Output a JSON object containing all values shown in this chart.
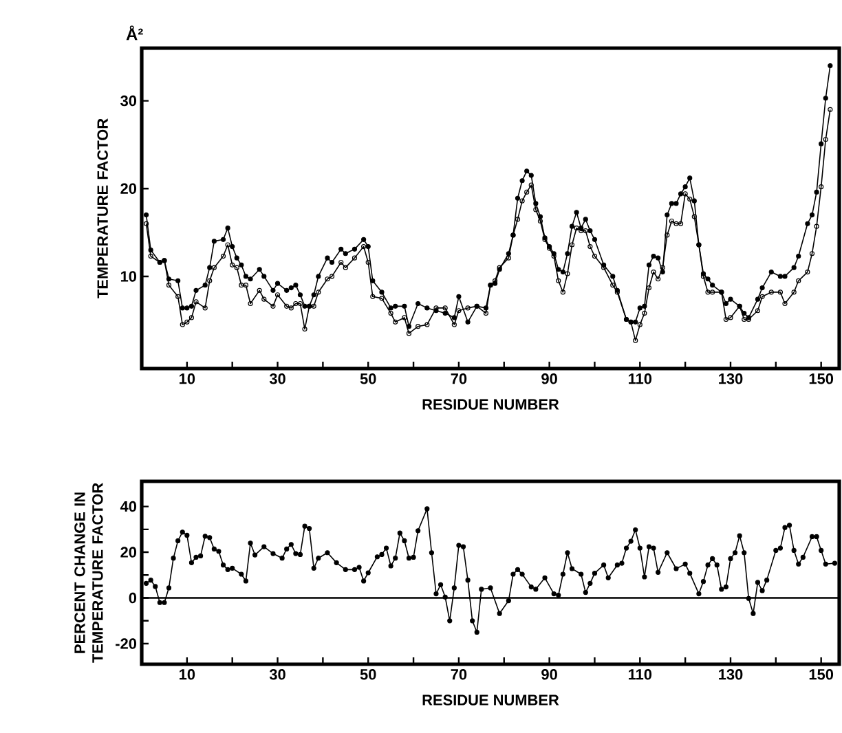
{
  "chart_data": [
    {
      "type": "line",
      "xlabel": "RESIDUE NUMBER",
      "ylabel": "TEMPERATURE FACTOR",
      "annotations": [
        "Å²"
      ],
      "marker": "circle",
      "line_style": "solid",
      "xlim": [
        0,
        154
      ],
      "ylim": [
        -0.5,
        36
      ],
      "xticks": [
        10,
        {
          "value": 20,
          "label": null
        },
        30,
        {
          "value": 40,
          "label": null
        },
        50,
        {
          "value": 60,
          "label": null
        },
        70,
        {
          "value": 80,
          "label": null
        },
        90,
        {
          "value": 100,
          "label": null
        },
        110,
        {
          "value": 120,
          "label": null
        },
        130,
        {
          "value": 140,
          "label": null
        },
        150
      ],
      "yticks": [
        10,
        20,
        30
      ],
      "x": [
        1,
        2,
        4,
        5,
        6,
        8,
        9,
        10,
        11,
        12,
        14,
        15,
        16,
        18,
        19,
        20,
        21,
        22,
        23,
        24,
        26,
        27,
        29,
        30,
        32,
        33,
        34,
        35,
        36,
        37,
        38,
        39,
        41,
        42,
        44,
        45,
        47,
        49,
        50,
        51,
        53,
        55,
        56,
        58,
        59,
        61,
        63,
        65,
        67,
        69,
        70,
        72,
        74,
        76,
        77,
        78,
        79,
        81,
        82,
        83,
        84,
        85,
        86,
        87,
        88,
        89,
        90,
        91,
        92,
        93,
        94,
        95,
        96,
        97,
        98,
        99,
        100,
        102,
        104,
        105,
        107,
        108,
        109,
        110,
        111,
        112,
        113,
        114,
        115,
        116,
        117,
        118,
        119,
        120,
        121,
        122,
        123,
        124,
        125,
        126,
        128,
        129,
        130,
        132,
        133,
        134,
        136,
        137,
        139,
        141,
        142,
        144,
        145,
        147,
        148,
        149,
        150,
        151,
        152
      ],
      "series": [
        {
          "color": "#000000",
          "values": [
            17,
            13,
            11.6,
            11.8,
            9.7,
            9.5,
            6.4,
            6.4,
            6.6,
            8.4,
            9,
            11,
            14,
            14.2,
            15.5,
            13.4,
            12.1,
            11.3,
            10,
            9.7,
            10.8,
            10,
            8.4,
            9.2,
            8.4,
            8.7,
            9,
            7.9,
            6.6,
            6.6,
            7.9,
            10,
            12.1,
            11.6,
            13.1,
            12.6,
            13.1,
            14.2,
            13.4,
            9.5,
            8.2,
            6.4,
            6.6,
            6.6,
            4.3,
            6.9,
            6.4,
            6.1,
            5.8,
            5.3,
            7.7,
            4.8,
            6.6,
            6.4,
            9,
            9.2,
            10.8,
            12.6,
            14.7,
            18.9,
            20.9,
            22,
            21.5,
            18.3,
            16.8,
            14.4,
            13.4,
            12.6,
            10.8,
            10.5,
            12.6,
            15.7,
            17.3,
            15.5,
            16.5,
            15.2,
            14.2,
            11.3,
            10,
            8.4,
            5.1,
            4.8,
            4.8,
            6.4,
            6.6,
            11.3,
            12.3,
            12.1,
            10.5,
            17,
            18.3,
            18.3,
            19.4,
            20.2,
            21.2,
            18.6,
            13.6,
            10.3,
            9.7,
            9,
            8.2,
            6.9,
            7.4,
            6.6,
            5.8,
            5.3,
            7.4,
            8.7,
            10.5,
            10,
            10,
            11,
            12.3,
            16,
            17,
            19.6,
            25.1,
            30.3,
            34
          ]
        },
        {
          "color": "#000000",
          "values": [
            16,
            12.3,
            11.6,
            11.8,
            9,
            7.7,
            4.5,
            4.8,
            5.3,
            7.1,
            6.4,
            9.5,
            11,
            12.3,
            13.6,
            11.3,
            11,
            9,
            9,
            6.9,
            8.4,
            7.4,
            6.6,
            7.9,
            6.6,
            6.4,
            6.9,
            6.9,
            4,
            6.6,
            6.6,
            8.2,
            9.7,
            10,
            11.6,
            11,
            12.1,
            13.4,
            11.6,
            7.7,
            7.5,
            5.8,
            4.8,
            5.3,
            3.5,
            4.3,
            4.5,
            6.4,
            6.4,
            4.5,
            6.1,
            6.4,
            6.6,
            5.8,
            9,
            9.5,
            11,
            12.1,
            14.7,
            16.5,
            18.6,
            19.6,
            20.4,
            17.6,
            16.3,
            14.2,
            13.2,
            12.3,
            9.5,
            8.2,
            10.3,
            13.6,
            15.5,
            15.2,
            15.2,
            13.4,
            12.3,
            11,
            9,
            8.2,
            5.1,
            4.8,
            2.7,
            4.5,
            5.8,
            8.7,
            10.5,
            9.7,
            11,
            14.7,
            16.3,
            16,
            16,
            19.4,
            18.8,
            16.8,
            13.6,
            10,
            8.2,
            8.2,
            8.2,
            5.1,
            5.3,
            6.6,
            5.1,
            5.1,
            6.1,
            7.7,
            8.2,
            8.2,
            6.9,
            8.2,
            9.5,
            10.5,
            12.6,
            15.7,
            20.2,
            25.6,
            29
          ]
        }
      ]
    },
    {
      "type": "line",
      "xlabel": "RESIDUE NUMBER",
      "ylabel": "PERCENT CHANGE IN TEMPERATURE FACTOR",
      "marker": "circle",
      "line_style": "solid",
      "xlim": [
        0,
        154
      ],
      "ylim": [
        -29,
        51
      ],
      "xticks": [
        10,
        {
          "value": 20,
          "label": null
        },
        30,
        {
          "value": 40,
          "label": null
        },
        50,
        {
          "value": 60,
          "label": null
        },
        70,
        {
          "value": 80,
          "label": null
        },
        90,
        {
          "value": 100,
          "label": null
        },
        110,
        {
          "value": 120,
          "label": null
        },
        130,
        {
          "value": 140,
          "label": null
        },
        150
      ],
      "yticks": [
        -20,
        {
          "value": -10,
          "label": null
        },
        0,
        {
          "value": 10,
          "label": null
        },
        20,
        {
          "value": 30,
          "label": null
        },
        40
      ],
      "ref_lines": [
        {
          "axis": "y",
          "value": 0
        }
      ],
      "x": [
        1,
        2,
        3,
        4,
        5,
        6,
        7,
        8,
        9,
        10,
        11,
        12,
        13,
        14,
        15,
        16,
        17,
        18,
        19,
        20,
        22,
        23,
        24,
        25,
        27,
        29,
        31,
        32,
        33,
        34,
        35,
        36,
        37,
        38,
        39,
        41,
        43,
        45,
        47,
        48,
        49,
        50,
        52,
        53,
        54,
        55,
        56,
        57,
        58,
        59,
        60,
        61,
        63,
        64,
        65,
        66,
        67,
        68,
        69,
        70,
        71,
        72,
        73,
        74,
        75,
        77,
        79,
        81,
        82,
        83,
        84,
        86,
        87,
        89,
        91,
        92,
        93,
        94,
        95,
        97,
        98,
        99,
        100,
        102,
        103,
        105,
        106,
        107,
        108,
        109,
        110,
        111,
        112,
        113,
        114,
        116,
        118,
        120,
        121,
        123,
        124,
        125,
        126,
        127,
        128,
        129,
        130,
        131,
        132,
        133,
        134,
        135,
        136,
        137,
        138,
        140,
        141,
        142,
        143,
        144,
        145,
        146,
        148,
        149,
        150,
        151,
        153
      ],
      "series": [
        {
          "color": "#000000",
          "values": [
            6.4,
            7.8,
            5,
            -2,
            -2,
            4.4,
            17.4,
            25,
            28.8,
            27.4,
            15.4,
            17.8,
            18.4,
            27,
            26.4,
            21.4,
            20.4,
            14.4,
            12.4,
            13,
            10.4,
            7.4,
            24,
            18.8,
            22.4,
            19.4,
            17.4,
            21.4,
            23.4,
            19.4,
            19,
            31.4,
            30.4,
            13,
            17.4,
            19.8,
            15.4,
            12.4,
            12.4,
            13.4,
            7.4,
            11,
            18,
            19,
            21.8,
            14,
            17.4,
            28.4,
            25,
            17.4,
            17.8,
            29.4,
            39,
            19.8,
            1.8,
            5.8,
            0.4,
            -10,
            4.4,
            23,
            22.4,
            7.8,
            -10,
            -15,
            3.8,
            4.4,
            -6.8,
            -1.2,
            10.4,
            12.4,
            10.4,
            4.8,
            3.8,
            8.8,
            1.8,
            1.2,
            10.4,
            19.8,
            12.8,
            10.4,
            2.4,
            6.4,
            10.8,
            14.4,
            8.8,
            14.4,
            15.2,
            21.8,
            24.8,
            29.8,
            21.8,
            9.2,
            22.4,
            21.8,
            11.2,
            19.8,
            12.8,
            14.8,
            10.8,
            1.8,
            7.2,
            14.4,
            17.2,
            14.4,
            3.8,
            4.8,
            17.2,
            19.8,
            27.2,
            19.8,
            -0.2,
            -6.8,
            6.8,
            3.2,
            7.8,
            20.8,
            21.8,
            30.8,
            31.8,
            20.8,
            14.8,
            17.8,
            26.8,
            26.8,
            20.8,
            14.8,
            15.2
          ]
        }
      ]
    }
  ]
}
